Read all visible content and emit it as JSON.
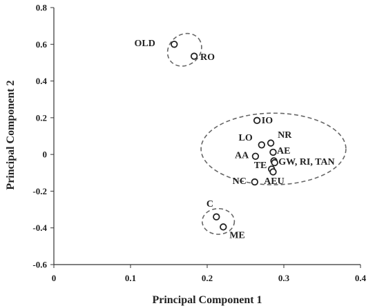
{
  "chart_data": {
    "type": "scatter",
    "xlabel": "Principal Component 1",
    "ylabel": "Principal Component 2",
    "xlim": [
      0,
      0.4
    ],
    "ylim": [
      -0.6,
      0.8
    ],
    "xticks": [
      0,
      0.1,
      0.2,
      0.3,
      0.4
    ],
    "xtick_labels": [
      "0",
      "0.1",
      "0.2",
      "0.3",
      "0.4"
    ],
    "yticks": [
      -0.6,
      -0.4,
      -0.2,
      0,
      0.2,
      0.4,
      0.6,
      0.8
    ],
    "ytick_labels": [
      "-0.6",
      "-0.4",
      "-0.2",
      "0",
      "0.2",
      "0.4",
      "0.6",
      "0.8"
    ],
    "grid": false,
    "marker": "open-circle",
    "points": [
      {
        "x": 0.157,
        "y": 0.6
      },
      {
        "x": 0.183,
        "y": 0.535
      },
      {
        "x": 0.265,
        "y": 0.185
      },
      {
        "x": 0.271,
        "y": 0.052
      },
      {
        "x": 0.283,
        "y": 0.062
      },
      {
        "x": 0.286,
        "y": 0.012
      },
      {
        "x": 0.263,
        "y": -0.01
      },
      {
        "x": 0.287,
        "y": -0.035
      },
      {
        "x": 0.288,
        "y": -0.045
      },
      {
        "x": 0.284,
        "y": -0.08
      },
      {
        "x": 0.286,
        "y": -0.095
      },
      {
        "x": 0.262,
        "y": -0.15
      },
      {
        "x": 0.212,
        "y": -0.34
      },
      {
        "x": 0.221,
        "y": -0.395
      }
    ],
    "point_labels": [
      {
        "text": "OLD",
        "x": 0.105,
        "y": 0.59
      },
      {
        "text": "RO",
        "x": 0.191,
        "y": 0.515
      },
      {
        "text": "IO",
        "x": 0.271,
        "y": 0.17
      },
      {
        "text": "LO",
        "x": 0.241,
        "y": 0.075
      },
      {
        "text": "NR",
        "x": 0.292,
        "y": 0.09
      },
      {
        "text": "AE",
        "x": 0.291,
        "y": 0.005
      },
      {
        "text": "AA",
        "x": 0.236,
        "y": -0.02
      },
      {
        "text": "GW, RI, TAN",
        "x": 0.293,
        "y": -0.055
      },
      {
        "text": "TE",
        "x": 0.261,
        "y": -0.075
      },
      {
        "text": "NC",
        "x": 0.233,
        "y": -0.16
      },
      {
        "text": "AEU",
        "x": 0.274,
        "y": -0.16
      },
      {
        "text": "C",
        "x": 0.199,
        "y": -0.285
      },
      {
        "text": "ME",
        "x": 0.229,
        "y": -0.455
      }
    ],
    "clusters": [
      {
        "cx": 0.1705,
        "cy": 0.57,
        "rx": 0.0235,
        "ry": 0.083,
        "rotate_deg": -38
      },
      {
        "cx": 0.2865,
        "cy": 0.03,
        "rx": 0.0945,
        "ry": 0.195,
        "rotate_deg": 0
      },
      {
        "cx": 0.2145,
        "cy": -0.365,
        "rx": 0.021,
        "ry": 0.07,
        "rotate_deg": 0
      }
    ]
  }
}
